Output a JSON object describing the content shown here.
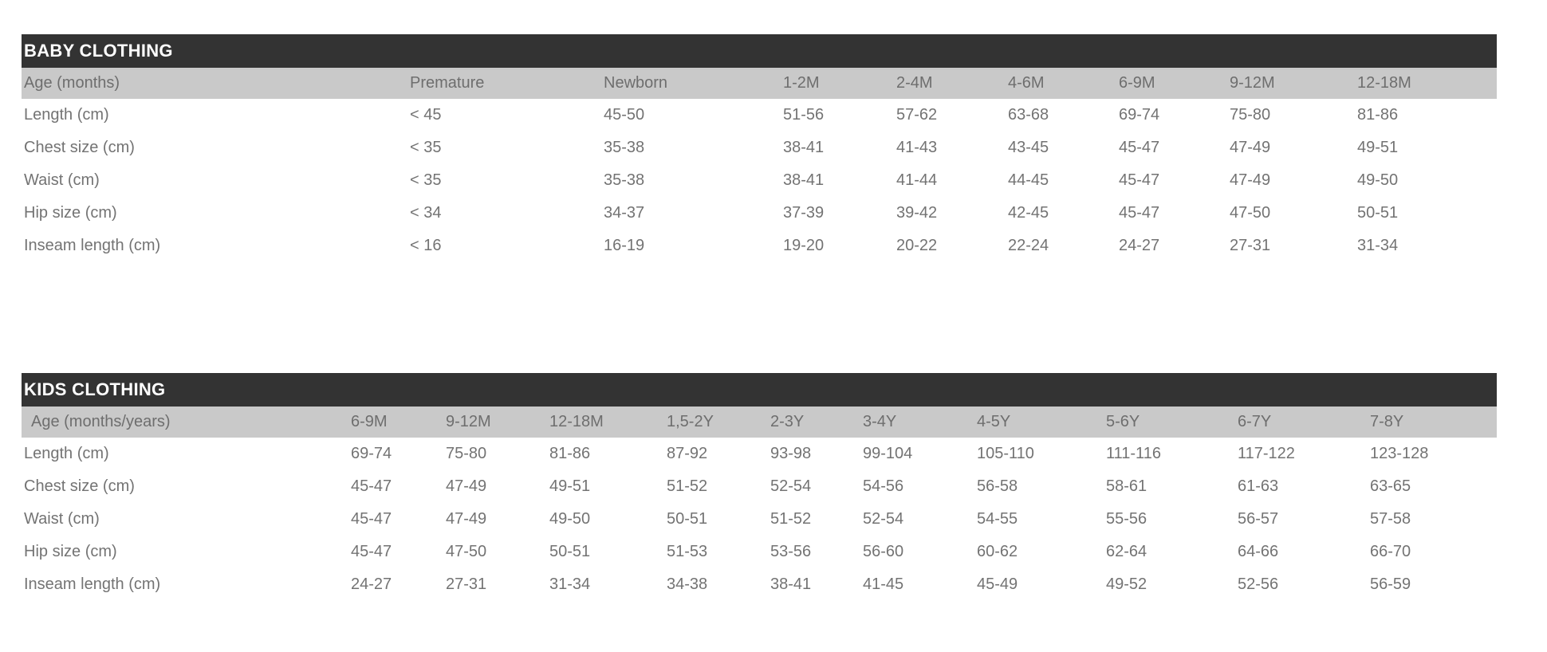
{
  "colors": {
    "page_bg": "#ffffff",
    "title_bar_bg": "#333333",
    "title_text": "#ffffff",
    "header_row_bg": "#c9c9c9",
    "header_text": "#6e6e6e",
    "body_text": "#737373"
  },
  "tables": {
    "baby": {
      "title": "BABY CLOTHING",
      "header": [
        "Age (months)",
        "Premature",
        "Newborn",
        "1-2M",
        "2-4M",
        "4-6M",
        "6-9M",
        "9-12M",
        "12-18M"
      ],
      "rows": [
        {
          "label": "Length (cm)",
          "values": [
            "< 45",
            "45-50",
            "51-56",
            "57-62",
            "63-68",
            "69-74",
            "75-80",
            "81-86"
          ]
        },
        {
          "label": "Chest size (cm)",
          "values": [
            "< 35",
            "35-38",
            "38-41",
            "41-43",
            "43-45",
            "45-47",
            "47-49",
            "49-51"
          ]
        },
        {
          "label": "Waist (cm)",
          "values": [
            "< 35",
            "35-38",
            "38-41",
            "41-44",
            "44-45",
            "45-47",
            "47-49",
            "49-50"
          ]
        },
        {
          "label": "Hip size (cm)",
          "values": [
            "< 34",
            "34-37",
            "37-39",
            "39-42",
            "42-45",
            "45-47",
            "47-50",
            "50-51"
          ]
        },
        {
          "label": "Inseam length (cm)",
          "values": [
            "< 16",
            "16-19",
            "19-20",
            "20-22",
            "22-24",
            "24-27",
            "27-31",
            "31-34"
          ]
        }
      ]
    },
    "kids": {
      "title": "KIDS CLOTHING",
      "header": [
        "Age (months/years)",
        "6-9M",
        "9-12M",
        "12-18M",
        "1,5-2Y",
        "2-3Y",
        "3-4Y",
        "4-5Y",
        "5-6Y",
        "6-7Y",
        "7-8Y"
      ],
      "rows": [
        {
          "label": "Length (cm)",
          "values": [
            "69-74",
            "75-80",
            "81-86",
            "87-92",
            "93-98",
            "99-104",
            "105-110",
            "111-116",
            "117-122",
            "123-128"
          ]
        },
        {
          "label": "Chest size (cm)",
          "values": [
            "45-47",
            "47-49",
            "49-51",
            "51-52",
            "52-54",
            "54-56",
            "56-58",
            "58-61",
            "61-63",
            "63-65"
          ]
        },
        {
          "label": "Waist (cm)",
          "values": [
            "45-47",
            "47-49",
            "49-50",
            "50-51",
            "51-52",
            "52-54",
            "54-55",
            "55-56",
            "56-57",
            "57-58"
          ]
        },
        {
          "label": "Hip size (cm)",
          "values": [
            "45-47",
            "47-50",
            "50-51",
            "51-53",
            "53-56",
            "56-60",
            "60-62",
            "62-64",
            "64-66",
            "66-70"
          ]
        },
        {
          "label": "Inseam length (cm)",
          "values": [
            "24-27",
            "27-31",
            "31-34",
            "34-38",
            "38-41",
            "41-45",
            "45-49",
            "49-52",
            "52-56",
            "56-59"
          ]
        }
      ]
    }
  }
}
